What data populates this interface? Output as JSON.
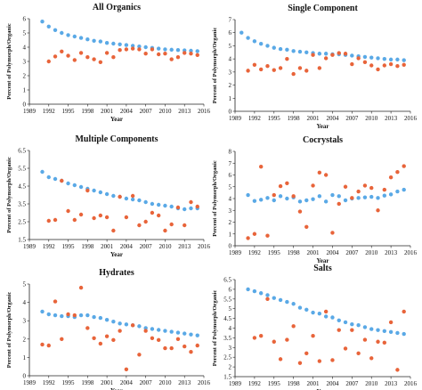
{
  "chart_data": [
    {
      "type": "scatter",
      "title": "All Organics",
      "xlabel": "Year",
      "ylabel": "Percent of Polymorph/Organic",
      "xlim": [
        1989,
        2016
      ],
      "ylim": [
        0,
        6
      ],
      "xticks": [
        "1989",
        "1992",
        "1995",
        "1998",
        "2001",
        "2004",
        "2007",
        "2010",
        "2013",
        "2016"
      ],
      "yticks": [
        "0",
        "1",
        "2",
        "3",
        "4",
        "5",
        "6"
      ],
      "colors": {
        "blue": "#5aa9e6",
        "orange": "#e8643a"
      },
      "series": [
        {
          "color": "blue",
          "x": [
            1991,
            1992,
            1993,
            1994,
            1995,
            1996,
            1997,
            1998,
            1999,
            2000,
            2001,
            2002,
            2003,
            2004,
            2005,
            2006,
            2007,
            2008,
            2009,
            2010,
            2011,
            2012,
            2013,
            2014,
            2015
          ],
          "y": [
            5.8,
            5.45,
            5.2,
            5.0,
            4.85,
            4.75,
            4.65,
            4.55,
            4.45,
            4.4,
            4.3,
            4.25,
            4.2,
            4.15,
            4.1,
            4.05,
            4.0,
            3.95,
            3.9,
            3.85,
            3.82,
            3.8,
            3.78,
            3.75,
            3.72
          ]
        },
        {
          "color": "orange",
          "x": [
            1992,
            1993,
            1994,
            1995,
            1996,
            1997,
            1998,
            1999,
            2000,
            2001,
            2002,
            2003,
            2004,
            2005,
            2006,
            2007,
            2008,
            2009,
            2010,
            2011,
            2012,
            2013,
            2014,
            2015
          ],
          "y": [
            3.0,
            3.35,
            3.7,
            3.4,
            3.1,
            3.6,
            3.3,
            3.15,
            2.95,
            3.6,
            3.3,
            3.8,
            3.85,
            3.9,
            3.85,
            3.55,
            3.85,
            3.5,
            3.55,
            3.15,
            3.3,
            3.6,
            3.55,
            3.45
          ]
        }
      ]
    },
    {
      "type": "scatter",
      "title": "Single Component",
      "xlabel": "Year",
      "ylabel": "Percent of Polymorph/Organic",
      "xlim": [
        1989,
        2016
      ],
      "ylim": [
        0,
        7
      ],
      "xticks": [
        "1989",
        "1992",
        "1995",
        "1998",
        "2001",
        "2004",
        "2007",
        "2010",
        "2013",
        "2016"
      ],
      "yticks": [
        "0",
        "1",
        "2",
        "3",
        "4",
        "5",
        "6",
        "7"
      ],
      "colors": {
        "blue": "#5aa9e6",
        "orange": "#e8643a"
      },
      "series": [
        {
          "color": "blue",
          "x": [
            1990,
            1991,
            1992,
            1993,
            1994,
            1995,
            1996,
            1997,
            1998,
            1999,
            2000,
            2001,
            2002,
            2003,
            2004,
            2005,
            2006,
            2007,
            2008,
            2009,
            2010,
            2011,
            2012,
            2013,
            2014,
            2015
          ],
          "y": [
            6.0,
            5.6,
            5.35,
            5.15,
            5.0,
            4.85,
            4.75,
            4.7,
            4.6,
            4.55,
            4.5,
            4.45,
            4.4,
            4.4,
            4.35,
            4.35,
            4.3,
            4.25,
            4.2,
            4.15,
            4.1,
            4.05,
            4.0,
            3.95,
            3.95,
            3.9
          ]
        },
        {
          "color": "orange",
          "x": [
            1991,
            1992,
            1993,
            1994,
            1995,
            1996,
            1997,
            1998,
            1999,
            2000,
            2001,
            2002,
            2003,
            2004,
            2005,
            2006,
            2007,
            2008,
            2009,
            2010,
            2011,
            2012,
            2013,
            2014,
            2015
          ],
          "y": [
            3.1,
            3.55,
            3.2,
            3.45,
            3.15,
            3.3,
            4.0,
            2.85,
            3.3,
            3.1,
            4.3,
            3.3,
            4.05,
            4.3,
            4.45,
            4.4,
            3.6,
            4.05,
            3.75,
            3.5,
            3.2,
            3.5,
            3.6,
            3.45,
            3.55
          ]
        }
      ]
    },
    {
      "type": "scatter",
      "title": "Multiple Components",
      "xlabel": "Year",
      "ylabel": "Percent of Polymorph/Organic",
      "xlim": [
        1989,
        2016
      ],
      "ylim": [
        1.5,
        6.5
      ],
      "xticks": [
        "1989",
        "1992",
        "1995",
        "1998",
        "2001",
        "2004",
        "2007",
        "2010",
        "2013",
        "2016"
      ],
      "yticks": [
        "1.5",
        "2.5",
        "3.5",
        "4.5",
        "5.5",
        "6.5"
      ],
      "colors": {
        "blue": "#5aa9e6",
        "orange": "#e8643a"
      },
      "series": [
        {
          "color": "blue",
          "x": [
            1991,
            1992,
            1993,
            1994,
            1995,
            1996,
            1997,
            1998,
            1999,
            2000,
            2001,
            2002,
            2003,
            2004,
            2005,
            2006,
            2007,
            2008,
            2009,
            2010,
            2011,
            2012,
            2013,
            2014,
            2015
          ],
          "y": [
            5.3,
            5.0,
            4.9,
            4.8,
            4.65,
            4.55,
            4.45,
            4.35,
            4.25,
            4.15,
            4.05,
            3.95,
            3.9,
            3.8,
            3.75,
            3.7,
            3.6,
            3.5,
            3.45,
            3.4,
            3.35,
            3.25,
            3.2,
            3.25,
            3.25
          ]
        },
        {
          "color": "orange",
          "x": [
            1992,
            1993,
            1994,
            1995,
            1996,
            1997,
            1998,
            1999,
            2000,
            2001,
            2002,
            2003,
            2004,
            2005,
            2006,
            2007,
            2008,
            2009,
            2010,
            2011,
            2012,
            2013,
            2014,
            2015
          ],
          "y": [
            2.55,
            2.6,
            4.8,
            3.1,
            2.6,
            2.9,
            4.25,
            2.7,
            2.85,
            2.75,
            2.0,
            3.9,
            2.75,
            3.95,
            2.3,
            2.5,
            3.0,
            2.85,
            2.0,
            2.35,
            3.3,
            2.3,
            3.6,
            3.35
          ]
        }
      ]
    },
    {
      "type": "scatter",
      "title": "Cocrystals",
      "xlabel": "Year",
      "ylabel": "Percent of Polymorph/Organic",
      "xlim": [
        1989,
        2016
      ],
      "ylim": [
        0,
        8
      ],
      "xticks": [
        "1989",
        "1992",
        "1995",
        "1998",
        "2001",
        "2004",
        "2007",
        "2010",
        "2013",
        "2016"
      ],
      "yticks": [
        "0",
        "1",
        "2",
        "3",
        "4",
        "5",
        "6",
        "7",
        "8"
      ],
      "colors": {
        "blue": "#5aa9e6",
        "orange": "#e8643a"
      },
      "series": [
        {
          "color": "blue",
          "x": [
            1991,
            1992,
            1993,
            1994,
            1995,
            1996,
            1997,
            1998,
            1999,
            2000,
            2001,
            2002,
            2003,
            2004,
            2005,
            2006,
            2007,
            2008,
            2009,
            2010,
            2011,
            2012,
            2013,
            2014,
            2015
          ],
          "y": [
            4.3,
            3.8,
            3.9,
            4.05,
            3.85,
            4.2,
            4.0,
            4.1,
            3.75,
            3.85,
            3.95,
            4.2,
            3.75,
            4.3,
            4.2,
            3.85,
            4.0,
            4.05,
            4.1,
            4.15,
            4.05,
            4.25,
            4.35,
            4.6,
            4.75
          ]
        },
        {
          "color": "orange",
          "x": [
            1991,
            1992,
            1993,
            1994,
            1995,
            1996,
            1997,
            1998,
            1999,
            2000,
            2001,
            2002,
            2003,
            2004,
            2005,
            2006,
            2007,
            2008,
            2009,
            2010,
            2011,
            2012,
            2013,
            2014,
            2015
          ],
          "y": [
            0.65,
            1.0,
            6.7,
            0.85,
            4.3,
            5.05,
            5.3,
            4.2,
            2.9,
            1.6,
            5.1,
            6.2,
            6.0,
            1.1,
            3.55,
            5.0,
            4.05,
            4.6,
            5.1,
            4.9,
            3.0,
            4.75,
            5.8,
            6.25,
            6.75
          ]
        }
      ]
    },
    {
      "type": "scatter",
      "title": "Hydrates",
      "xlabel": "Year",
      "ylabel": "Percent of Polymorph/Organic",
      "xlim": [
        1989,
        2016
      ],
      "ylim": [
        0,
        5
      ],
      "xticks": [
        "1989",
        "1992",
        "1995",
        "1998",
        "2001",
        "2004",
        "2007",
        "2010",
        "2013",
        "2016"
      ],
      "yticks": [
        "0",
        "1",
        "2",
        "3",
        "4",
        "5"
      ],
      "colors": {
        "blue": "#5aa9e6",
        "orange": "#e8643a"
      },
      "series": [
        {
          "color": "blue",
          "x": [
            1991,
            1992,
            1993,
            1994,
            1995,
            1996,
            1997,
            1998,
            1999,
            2000,
            2001,
            2002,
            2003,
            2004,
            2005,
            2006,
            2007,
            2008,
            2009,
            2010,
            2011,
            2012,
            2013,
            2014,
            2015
          ],
          "y": [
            3.5,
            3.35,
            3.3,
            3.25,
            3.25,
            3.2,
            3.3,
            3.3,
            3.2,
            3.15,
            3.05,
            2.95,
            2.85,
            2.8,
            2.75,
            2.7,
            2.6,
            2.55,
            2.5,
            2.45,
            2.4,
            2.35,
            2.3,
            2.25,
            2.2
          ]
        },
        {
          "color": "orange",
          "x": [
            1991,
            1992,
            1993,
            1994,
            1995,
            1996,
            1997,
            1998,
            1999,
            2000,
            2001,
            2002,
            2003,
            2004,
            2005,
            2006,
            2007,
            2008,
            2009,
            2010,
            2011,
            2012,
            2013,
            2014,
            2015
          ],
          "y": [
            1.7,
            1.65,
            4.05,
            2.0,
            3.35,
            3.3,
            4.8,
            2.6,
            2.05,
            1.75,
            2.15,
            1.95,
            2.45,
            0.35,
            2.75,
            1.15,
            2.45,
            2.05,
            1.95,
            1.5,
            1.5,
            2.0,
            1.6,
            1.3,
            1.65
          ]
        }
      ]
    },
    {
      "type": "scatter",
      "title": "Salts",
      "xlabel": "Year",
      "ylabel": "Percent of Polymorph/Organic",
      "xlim": [
        1989,
        2016
      ],
      "ylim": [
        1.5,
        6.5
      ],
      "xticks": [
        "1989",
        "1992",
        "1995",
        "1998",
        "2001",
        "2004",
        "2007",
        "2010",
        "2013",
        "2016"
      ],
      "yticks": [
        "1.5",
        "2",
        "2.5",
        "3",
        "3.5",
        "4",
        "4.5",
        "5",
        "5.5",
        "6",
        "6.5"
      ],
      "colors": {
        "blue": "#5aa9e6",
        "orange": "#e8643a"
      },
      "series": [
        {
          "color": "blue",
          "x": [
            1991,
            1992,
            1993,
            1994,
            1995,
            1996,
            1997,
            1998,
            1999,
            2000,
            2001,
            2002,
            2003,
            2004,
            2005,
            2006,
            2007,
            2008,
            2009,
            2010,
            2011,
            2012,
            2013,
            2014,
            2015
          ],
          "y": [
            6.0,
            5.9,
            5.8,
            5.7,
            5.55,
            5.45,
            5.35,
            5.25,
            5.05,
            4.95,
            4.8,
            4.75,
            4.6,
            4.55,
            4.4,
            4.3,
            4.2,
            4.15,
            4.05,
            3.95,
            3.9,
            3.85,
            3.8,
            3.75,
            3.7
          ]
        },
        {
          "color": "orange",
          "x": [
            1992,
            1993,
            1994,
            1995,
            1996,
            1997,
            1998,
            1999,
            2000,
            2001,
            2002,
            2003,
            2004,
            2005,
            2006,
            2007,
            2008,
            2009,
            2010,
            2011,
            2012,
            2013,
            2014,
            2015
          ],
          "y": [
            3.5,
            3.6,
            5.5,
            3.3,
            2.4,
            3.4,
            4.1,
            2.2,
            2.7,
            3.6,
            2.3,
            4.85,
            2.35,
            3.9,
            2.95,
            3.9,
            2.7,
            3.4,
            2.45,
            3.3,
            3.25,
            4.3,
            1.85,
            4.85
          ]
        }
      ]
    }
  ]
}
